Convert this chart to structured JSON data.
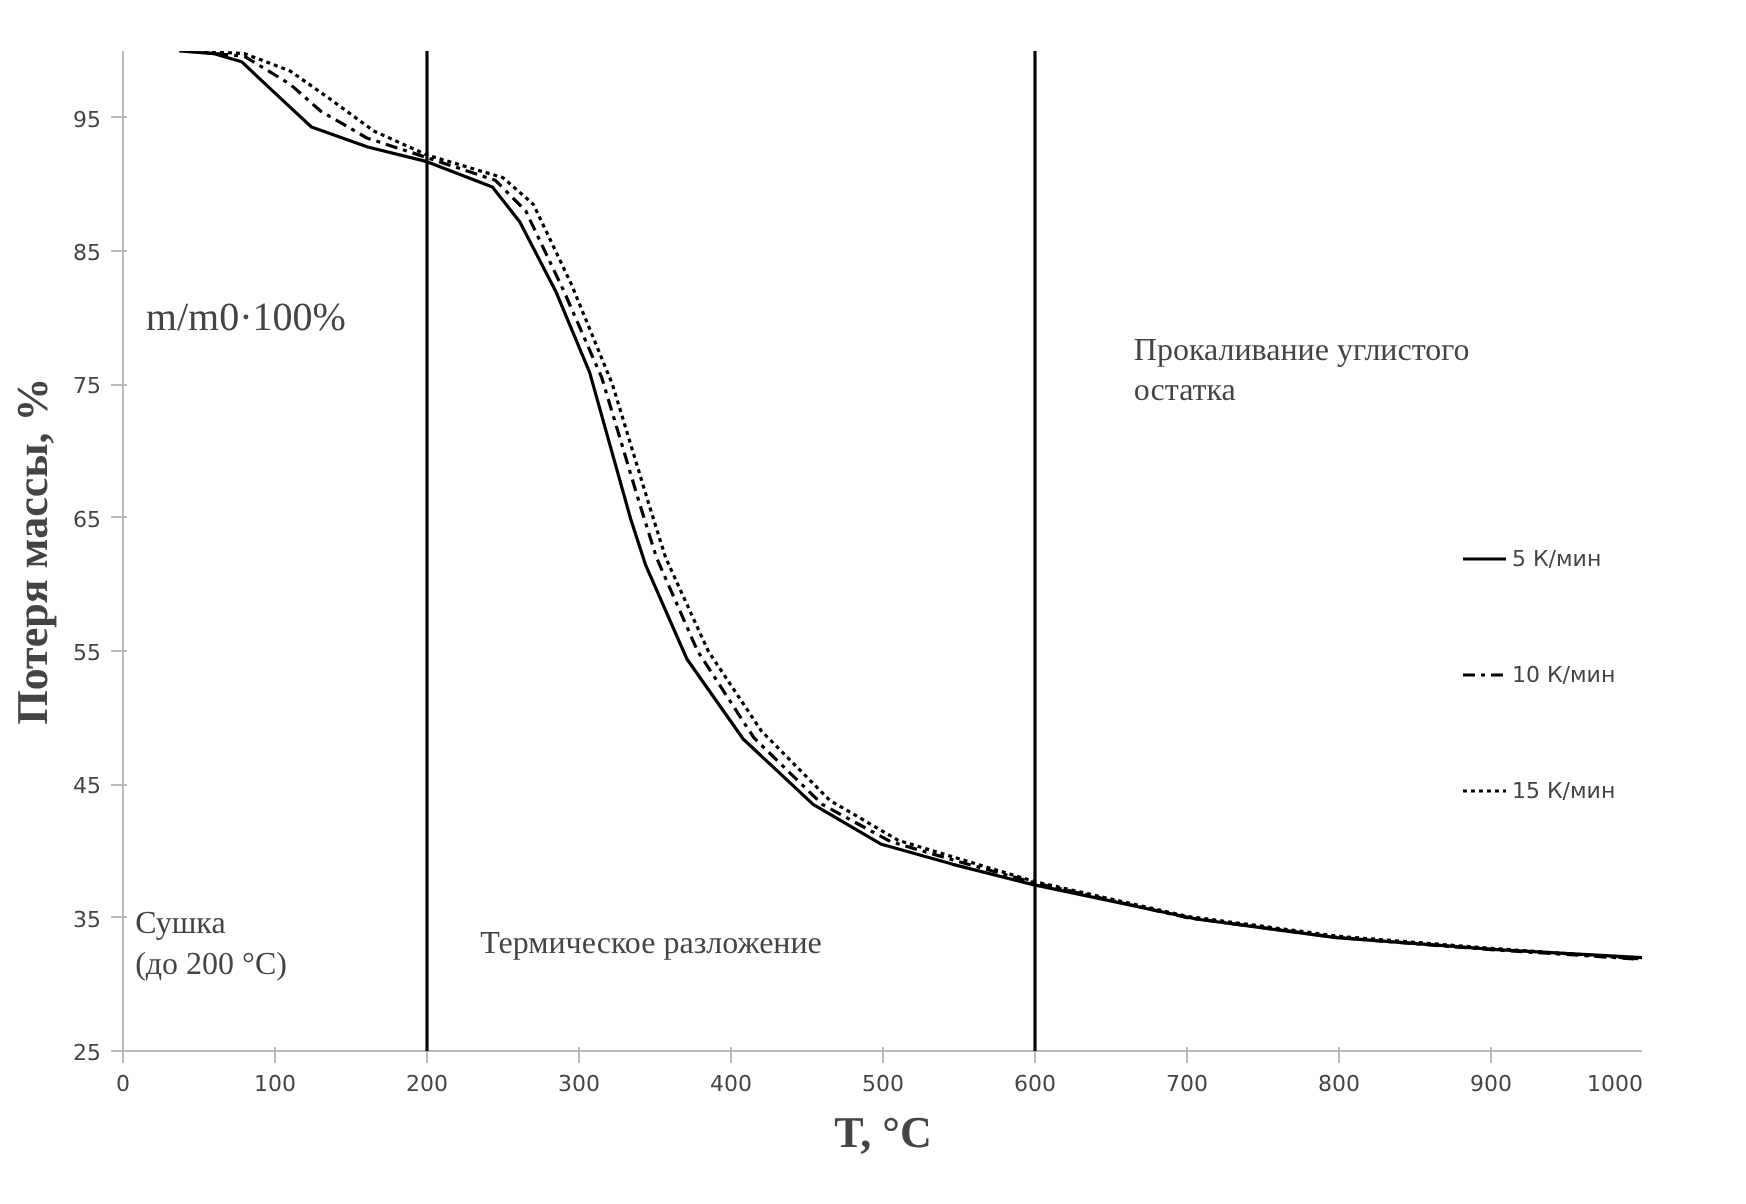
{
  "chart_data": {
    "type": "line",
    "xlabel": "T, °С",
    "ylabel": "Потеря массы, %",
    "xlim": [
      0,
      1000
    ],
    "xticks": [
      0,
      100,
      200,
      300,
      400,
      500,
      600,
      700,
      800,
      900,
      1000
    ],
    "ylim": [
      25,
      100
    ],
    "yticks": [
      25,
      35,
      45,
      55,
      65,
      75,
      85,
      95
    ],
    "grid": false,
    "legend": "right",
    "marker": "none",
    "series": [
      {
        "name": "5 К/мин",
        "color": "#000000",
        "line_style": "solid",
        "x": [
          37,
          60,
          78,
          106,
          124,
          161,
          200,
          243,
          261,
          285,
          307,
          334,
          344,
          371,
          408,
          454,
          499,
          546,
          598,
          706,
          798,
          904,
          1000
        ],
        "values": [
          100,
          99.8,
          99.2,
          96.2,
          94.3,
          92.8,
          91.7,
          89.8,
          87.2,
          81.9,
          75.9,
          64.9,
          61.4,
          54.4,
          48.4,
          43.5,
          40.5,
          39.0,
          37.5,
          34.9,
          33.5,
          32.6,
          32.0
        ]
      },
      {
        "name": "10 К/мин",
        "color": "#000000",
        "line_style": "dashed",
        "x": [
          43,
          80,
          110,
          130,
          160,
          200,
          245,
          265,
          290,
          315,
          340,
          351,
          378,
          415,
          460,
          505,
          550,
          600,
          700,
          800,
          900,
          996
        ],
        "values": [
          100,
          99.6,
          97.5,
          95.5,
          93.5,
          92.0,
          90.3,
          88.0,
          82.0,
          75.5,
          66.0,
          62.0,
          55.0,
          48.5,
          43.5,
          40.7,
          39.2,
          37.6,
          35.0,
          33.5,
          32.6,
          31.9
        ]
      },
      {
        "name": "15 К/мин",
        "color": "#000000",
        "line_style": "dotted",
        "x": [
          48,
          80,
          110,
          135,
          165,
          200,
          250,
          270,
          295,
          322,
          346,
          357,
          385,
          420,
          465,
          510,
          600,
          700,
          800,
          900,
          1000
        ],
        "values": [
          100,
          99.8,
          98.5,
          96.5,
          94.0,
          92.2,
          90.5,
          88.5,
          82.5,
          75.0,
          66.0,
          62.0,
          55.0,
          49.0,
          43.8,
          40.8,
          37.7,
          35.1,
          33.6,
          32.7,
          31.9
        ]
      }
    ],
    "ref_lines": [
      {
        "axis": "x",
        "value": 200,
        "color": "#000000"
      },
      {
        "axis": "x",
        "value": 600,
        "color": "#000000"
      }
    ],
    "annotations": [
      "m/m0·100%",
      "Сушка\n(до 200 °С)",
      "Термическое разложение",
      "Прокаливание углистого\nостатка"
    ]
  }
}
